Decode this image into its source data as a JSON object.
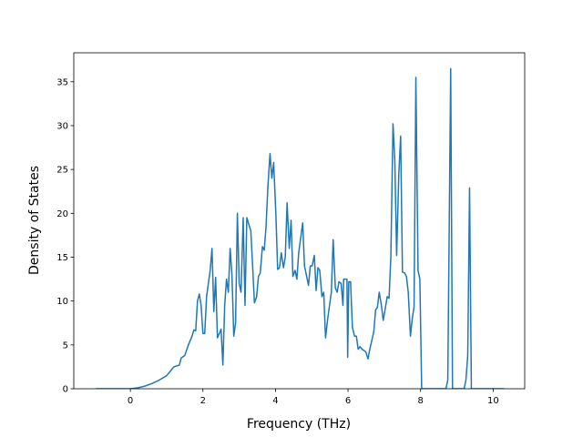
{
  "chart_data": {
    "type": "line",
    "x_label": "Frequency (THz)",
    "y_label": "Density of States",
    "xlim": [
      -1.56,
      10.87
    ],
    "ylim": [
      0,
      38.3
    ],
    "xticks": [
      0,
      2,
      4,
      6,
      8,
      10
    ],
    "yticks": [
      0,
      5,
      10,
      15,
      20,
      25,
      30,
      35
    ],
    "grid": false,
    "series": [
      {
        "color": "#1f77b4",
        "x": [
          -0.95,
          0,
          0.2,
          0.4,
          0.6,
          0.8,
          1.0,
          1.1,
          1.2,
          1.35,
          1.4,
          1.5,
          1.6,
          1.7,
          1.75,
          1.8,
          1.85,
          1.9,
          1.95,
          2.0,
          2.05,
          2.1,
          2.2,
          2.25,
          2.3,
          2.35,
          2.4,
          2.5,
          2.55,
          2.6,
          2.65,
          2.7,
          2.75,
          2.8,
          2.85,
          2.9,
          2.95,
          3.0,
          3.05,
          3.11,
          3.16,
          3.21,
          3.32,
          3.37,
          3.42,
          3.48,
          3.53,
          3.58,
          3.64,
          3.69,
          3.74,
          3.79,
          3.85,
          3.9,
          3.95,
          4.01,
          4.06,
          4.11,
          4.16,
          4.22,
          4.27,
          4.32,
          4.38,
          4.43,
          4.48,
          4.54,
          4.59,
          4.64,
          4.75,
          4.8,
          4.91,
          4.96,
          5.01,
          5.07,
          5.12,
          5.17,
          5.22,
          5.28,
          5.33,
          5.38,
          5.44,
          5.54,
          5.59,
          5.65,
          5.7,
          5.75,
          5.81,
          5.86,
          5.88,
          5.97,
          5.99,
          6.02,
          6.07,
          6.12,
          6.18,
          6.23,
          6.28,
          6.33,
          6.39,
          6.49,
          6.55,
          6.6,
          6.71,
          6.76,
          6.81,
          6.86,
          6.92,
          6.97,
          7.02,
          7.08,
          7.13,
          7.18,
          7.24,
          7.29,
          7.34,
          7.4,
          7.45,
          7.5,
          7.56,
          7.61,
          7.66,
          7.72,
          7.77,
          7.82,
          7.87,
          7.93,
          7.98,
          8.03,
          8.1,
          8.7,
          8.75,
          8.83,
          8.88,
          9.2,
          9.25,
          9.3,
          9.35,
          9.4,
          10.3
        ],
        "values": [
          0,
          0,
          0.1,
          0.3,
          0.6,
          1.0,
          1.5,
          2.0,
          2.5,
          2.7,
          3.5,
          3.8,
          5.0,
          6.0,
          6.7,
          6.6,
          10.0,
          10.8,
          9.5,
          6.3,
          6.3,
          10.5,
          13.5,
          16.0,
          8.8,
          12.7,
          5.8,
          6.8,
          2.7,
          9.5,
          12.5,
          11.0,
          16.0,
          13.0,
          6.0,
          7.5,
          20.0,
          12.0,
          11.0,
          19.5,
          9.5,
          19.5,
          18.0,
          14.0,
          9.8,
          10.5,
          12.8,
          13.2,
          16.2,
          15.8,
          18.5,
          23.0,
          26.8,
          24.0,
          25.8,
          20.0,
          13.6,
          13.8,
          15.5,
          13.8,
          15.0,
          21.2,
          16.0,
          19.2,
          12.8,
          13.5,
          12.5,
          15.5,
          18.9,
          14.0,
          11.8,
          14.0,
          14.0,
          15.2,
          11.2,
          13.8,
          13.5,
          10.5,
          11.0,
          5.8,
          8.0,
          11.0,
          17.0,
          11.5,
          11.0,
          12.2,
          12.0,
          9.5,
          12.5,
          12.5,
          3.6,
          12.2,
          12.2,
          7.0,
          6.0,
          6.0,
          4.5,
          4.8,
          4.5,
          4.2,
          3.4,
          4.5,
          6.5,
          9.0,
          9.3,
          11.0,
          9.5,
          7.8,
          9.0,
          10.5,
          10.3,
          15.0,
          30.2,
          26.0,
          15.2,
          24.5,
          28.8,
          13.3,
          13.2,
          12.8,
          11.0,
          6.0,
          8.0,
          9.3,
          35.5,
          13.5,
          12.5,
          0,
          0,
          0,
          1.0,
          36.5,
          0,
          0,
          1.0,
          3.8,
          22.9,
          0,
          0
        ]
      }
    ]
  }
}
